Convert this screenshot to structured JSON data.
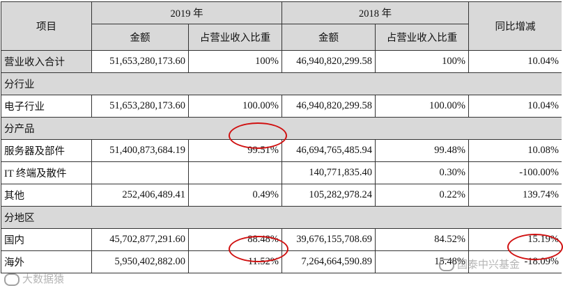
{
  "header": {
    "item": "项目",
    "year_2019": "2019 年",
    "year_2018": "2018 年",
    "yoy": "同比增减",
    "amount": "金额",
    "share": "占营业收入比重"
  },
  "rows": [
    {
      "type": "data",
      "label": "营业收入合计",
      "a2019": "51,653,280,173.60",
      "p2019": "100%",
      "a2018": "46,940,820,299.58",
      "p2018": "100%",
      "yoy": "10.04%"
    },
    {
      "type": "section",
      "label": "分行业"
    },
    {
      "type": "data",
      "label": "电子行业",
      "a2019": "51,653,280,173.60",
      "p2019": "100.00%",
      "a2018": "46,940,820,299.58",
      "p2018": "100.00%",
      "yoy": "10.04%"
    },
    {
      "type": "section",
      "label": "分产品"
    },
    {
      "type": "data",
      "label": "服务器及部件",
      "a2019": "51,400,873,684.19",
      "p2019": "99.51%",
      "a2018": "46,694,765,485.94",
      "p2018": "99.48%",
      "yoy": "10.08%"
    },
    {
      "type": "data",
      "label": "IT 终端及散件",
      "a2019": "",
      "p2019": "",
      "a2018": "140,771,835.40",
      "p2018": "0.30%",
      "yoy": "-100.00%"
    },
    {
      "type": "data",
      "label": "其他",
      "a2019": "252,406,489.41",
      "p2019": "0.49%",
      "a2018": "105,282,978.24",
      "p2018": "0.22%",
      "yoy": "139.74%"
    },
    {
      "type": "section",
      "label": "分地区"
    },
    {
      "type": "data",
      "label": "国内",
      "a2019": "45,702,877,291.60",
      "p2019": "88.48%",
      "a2018": "39,676,155,708.69",
      "p2018": "84.52%",
      "yoy": "15.19%"
    },
    {
      "type": "data",
      "label": "海外",
      "a2019": "5,950,402,882.00",
      "p2019": "11.52%",
      "a2018": "7,264,664,590.89",
      "p2018": "15.48%",
      "yoy": "-18.09%"
    }
  ],
  "watermarks": {
    "left": "大数据猿",
    "right": "国泰中兴基金"
  },
  "colors": {
    "circle": "#d01010",
    "header_bg": "#d9d9d9"
  }
}
